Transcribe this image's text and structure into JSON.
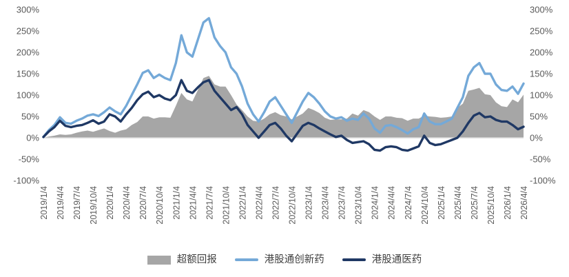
{
  "chart_data": {
    "type": "area+line",
    "title": "",
    "xlabel": "",
    "ylabel": "",
    "ylim": [
      -100,
      300
    ],
    "grid": false,
    "legend_position": "bottom",
    "axis_text_color": "#595959",
    "zero_line_color": "#D9D9D9",
    "y_tick_labels": [
      "300%",
      "250%",
      "200%",
      "150%",
      "100%",
      "50%",
      "0%",
      "-50%",
      "-100%"
    ],
    "y_tick_values": [
      300,
      250,
      200,
      150,
      100,
      50,
      0,
      -50,
      -100
    ],
    "x_tick_labels": [
      "2019/1/4",
      "2019/4/4",
      "2019/7/4",
      "2019/10/4",
      "2020/1/4",
      "2020/4/4",
      "2020/7/4",
      "2020/10/4",
      "2021/1/4",
      "2021/4/4",
      "2021/7/4",
      "2021/10/4",
      "2022/1/4",
      "2022/4/4",
      "2022/7/4",
      "2022/10/4",
      "2023/1/4",
      "2023/4/4",
      "2023/7/4",
      "2023/10/4",
      "2024/1/4",
      "2024/4/4",
      "2024/7/4",
      "2024/10/4",
      "2025/1/4",
      "2025/4/4",
      "2025/7/4",
      "2025/10/4",
      "2026/1/4",
      "2026/4/4"
    ],
    "x_note": "series sampled monthly from 2019/1 to 2026/4 (88 points), values in percent",
    "series": [
      {
        "name": "超额回报",
        "type": "area",
        "color": "#A6A6A6",
        "values": [
          0,
          3,
          5,
          8,
          7,
          8,
          12,
          15,
          17,
          14,
          18,
          22,
          16,
          12,
          17,
          20,
          30,
          37,
          50,
          50,
          45,
          48,
          48,
          47,
          75,
          105,
          90,
          85,
          112,
          140,
          145,
          125,
          120,
          120,
          100,
          78,
          65,
          50,
          40,
          38,
          45,
          55,
          60,
          53,
          50,
          43,
          50,
          57,
          70,
          65,
          58,
          47,
          42,
          43,
          43,
          45,
          57,
          52,
          65,
          60,
          50,
          42,
          50,
          50,
          47,
          46,
          40,
          45,
          45,
          52,
          50,
          49,
          47,
          48,
          50,
          70,
          80,
          110,
          113,
          117,
          102,
          100,
          83,
          74,
          72,
          90,
          83,
          101
        ]
      },
      {
        "name": "港股通创新药",
        "type": "line",
        "color": "#74A9D8",
        "values": [
          2,
          18,
          30,
          48,
          35,
          33,
          40,
          45,
          52,
          55,
          51,
          60,
          71,
          62,
          55,
          75,
          100,
          125,
          152,
          158,
          140,
          148,
          140,
          135,
          175,
          240,
          200,
          190,
          230,
          270,
          280,
          235,
          215,
          200,
          165,
          150,
          120,
          80,
          55,
          38,
          60,
          85,
          95,
          75,
          55,
          35,
          60,
          85,
          105,
          95,
          80,
          62,
          50,
          45,
          48,
          40,
          45,
          42,
          57,
          45,
          22,
          12,
          28,
          30,
          25,
          18,
          10,
          20,
          25,
          57,
          38,
          32,
          32,
          38,
          45,
          70,
          95,
          145,
          165,
          175,
          150,
          150,
          125,
          112,
          110,
          120,
          103,
          127
        ]
      },
      {
        "name": "港股通医药",
        "type": "line",
        "color": "#1F3864",
        "values": [
          2,
          15,
          25,
          40,
          28,
          25,
          28,
          30,
          35,
          41,
          33,
          38,
          55,
          50,
          38,
          55,
          70,
          88,
          102,
          108,
          95,
          100,
          92,
          88,
          100,
          135,
          110,
          105,
          118,
          130,
          135,
          110,
          95,
          80,
          65,
          72,
          55,
          30,
          15,
          0,
          15,
          30,
          35,
          22,
          5,
          -8,
          10,
          28,
          35,
          30,
          22,
          15,
          8,
          2,
          5,
          -5,
          -12,
          -10,
          -8,
          -15,
          -28,
          -30,
          -22,
          -20,
          -22,
          -28,
          -30,
          -25,
          -20,
          5,
          -12,
          -17,
          -15,
          -10,
          -5,
          0,
          15,
          35,
          52,
          58,
          48,
          50,
          42,
          38,
          38,
          30,
          20,
          26
        ]
      }
    ]
  },
  "legend": {
    "excess_label": "超额回报",
    "innovative_label": "港股通创新药",
    "pharma_label": "港股通医药"
  }
}
